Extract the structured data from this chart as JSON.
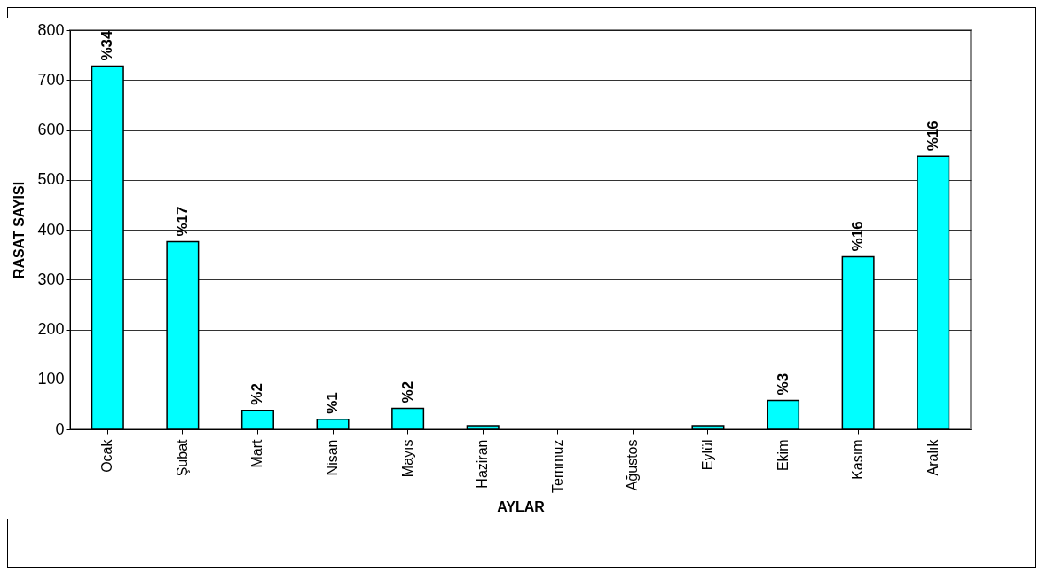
{
  "chart_data": {
    "type": "bar",
    "xlabel": "AYLAR",
    "ylabel": "RASAT SAYISI",
    "categories": [
      "Ocak",
      "Şubat",
      "Mart",
      "Nisan",
      "Mayıs",
      "Haziran",
      "Temmuz",
      "Ağustos",
      "Eylül",
      "Ekim",
      "Kasım",
      "Aralık"
    ],
    "values": [
      728,
      376,
      38,
      20,
      42,
      7,
      0,
      0,
      7,
      58,
      346,
      547
    ],
    "annotations": [
      {
        "text": "%34",
        "x": "Ocak",
        "y": 728
      },
      {
        "text": "%17",
        "x": "Şubat",
        "y": 376
      },
      {
        "text": "%2",
        "x": "Mart",
        "y": 38
      },
      {
        "text": "%1",
        "x": "Nisan",
        "y": 20
      },
      {
        "text": "%2",
        "x": "Mayıs",
        "y": 42
      },
      {
        "text": "%3",
        "x": "Ekim",
        "y": 58
      },
      {
        "text": "%16",
        "x": "Kasım",
        "y": 346
      },
      {
        "text": "%16",
        "x": "Aralık",
        "y": 547
      }
    ],
    "color": "#00ffff",
    "ylim": [
      0,
      800
    ],
    "yticks": [
      0,
      100,
      200,
      300,
      400,
      500,
      600,
      700,
      800
    ],
    "grid": "y"
  }
}
